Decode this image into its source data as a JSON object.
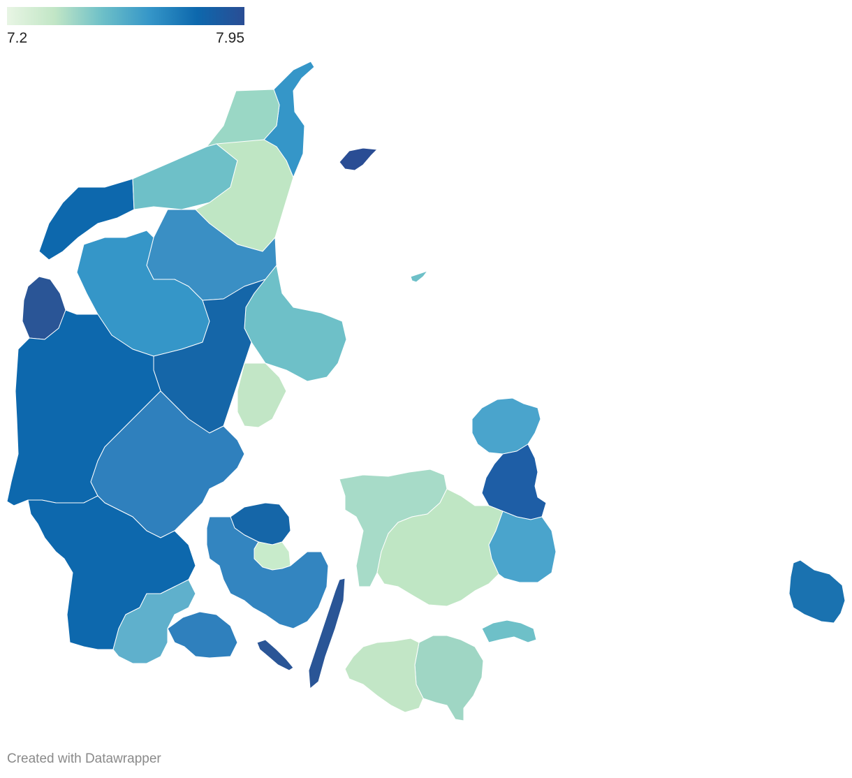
{
  "legend": {
    "min_label": "7.2",
    "max_label": "7.95",
    "colors": [
      "#e8f5e4",
      "#c2e6c6",
      "#6ec0c8",
      "#3596c8",
      "#0d68ad",
      "#2a4d94"
    ]
  },
  "credit": "Created with Datawrapper",
  "regions": [
    {
      "name": "north-jutland-tip",
      "color": "#3596c8"
    },
    {
      "name": "north-jutland-west",
      "color": "#9ad7c5"
    },
    {
      "name": "thy",
      "color": "#0d68ad"
    },
    {
      "name": "mors",
      "color": "#6ec0c8"
    },
    {
      "name": "vendsyssel-east",
      "color": "#bfe6c4"
    },
    {
      "name": "laeso",
      "color": "#2a4d94"
    },
    {
      "name": "anholt",
      "color": "#6ec0c8"
    },
    {
      "name": "bornholm",
      "color": "#1a72b0"
    },
    {
      "name": "west-jutland-north",
      "color": "#2a5596"
    },
    {
      "name": "west-jutland",
      "color": "#0d68ad"
    },
    {
      "name": "central-jutland",
      "color": "#3596c8"
    },
    {
      "name": "himmerland",
      "color": "#3a8fc4"
    },
    {
      "name": "djursland",
      "color": "#6ec0c8"
    },
    {
      "name": "randers",
      "color": "#1566a8"
    },
    {
      "name": "aarhus",
      "color": "#c2e6c6"
    },
    {
      "name": "south-jutland-west",
      "color": "#0d68ad"
    },
    {
      "name": "south-jutland-central",
      "color": "#5fb0cc"
    },
    {
      "name": "south-jutland-east",
      "color": "#2f80bd"
    },
    {
      "name": "fyn-north",
      "color": "#1566a8"
    },
    {
      "name": "fyn-central",
      "color": "#c8ebcb"
    },
    {
      "name": "fyn-south",
      "color": "#3385c0"
    },
    {
      "name": "langeland",
      "color": "#2a5596"
    },
    {
      "name": "north-zealand",
      "color": "#4aa4cc"
    },
    {
      "name": "copenhagen",
      "color": "#1e5ea6"
    },
    {
      "name": "west-zealand",
      "color": "#a7dbc8"
    },
    {
      "name": "central-zealand",
      "color": "#bfe6c4"
    },
    {
      "name": "south-zealand",
      "color": "#4aa4cc"
    },
    {
      "name": "lolland",
      "color": "#c2e6c6"
    },
    {
      "name": "falster",
      "color": "#9fd6c4"
    },
    {
      "name": "mon",
      "color": "#6ec0c8"
    }
  ]
}
